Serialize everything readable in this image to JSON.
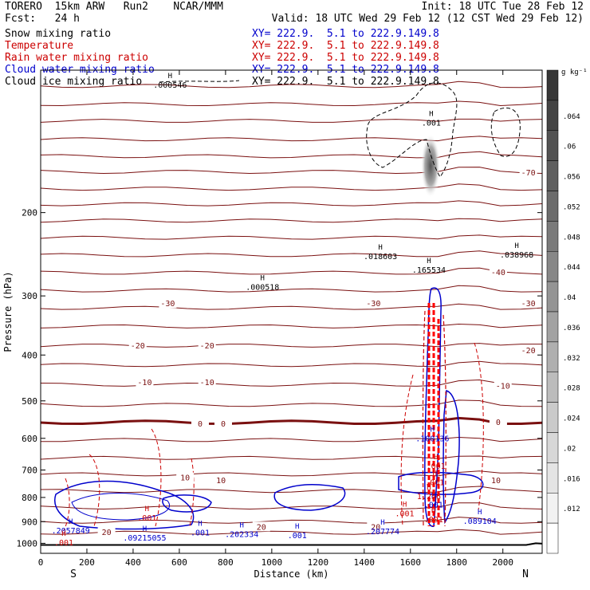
{
  "header": {
    "model": "TORERO  15km ARW   Run2    NCAR/MMM",
    "init": "Init: 18 UTC Tue 28 Feb 12",
    "fcst": "Fcst:   24 h",
    "valid": "Valid: 18 UTC Wed 29 Feb 12 (12 CST Wed 29 Feb 12)"
  },
  "fields": [
    {
      "name": "Snow mixing ratio",
      "xy": "XY= 222.9.  5.1 to 222.9.149.8",
      "color": "#000000"
    },
    {
      "name": "Temperature",
      "xy": "XY= 222.9.  5.1 to 222.9.149.8",
      "color": "#cc0000"
    },
    {
      "name": "Rain water mixing ratio",
      "xy": "XY= 222.9.  5.1 to 222.9.149.8",
      "color": "#cc0000"
    },
    {
      "name": "Cloud water mixing ratio",
      "xy": "XY= 222.9.  5.1 to 222.9.149.8",
      "color": "#0000cc"
    },
    {
      "name": "Cloud ice mixing ratio",
      "xy": "XY= 222.9.  5.1 to 222.9.149.8",
      "color": "#000000"
    }
  ],
  "chart_data": {
    "type": "cross-section contour",
    "xlabel": "Distance (km)",
    "ylabel": "Pressure (hPa)",
    "x_ticks": [
      "0",
      "200",
      "400",
      "600",
      "800",
      "1000",
      "1200",
      "1400",
      "1600",
      "1800",
      "2000"
    ],
    "xlim": [
      0,
      2170
    ],
    "y_ticks": [
      "200",
      "300",
      "400",
      "500",
      "600",
      "700",
      "800",
      "900",
      "1000"
    ],
    "ylim": [
      1050,
      100
    ],
    "endpoints": {
      "left": "S",
      "right": "N"
    },
    "colorbar": {
      "unit": "g kg⁻¹",
      "labels": [
        ".064",
        ".06",
        ".056",
        ".052",
        ".048",
        ".044",
        ".04",
        ".036",
        ".032",
        ".028",
        ".024",
        ".02",
        ".016",
        ".012"
      ]
    },
    "temperature_contour_labels": [
      {
        "text": "-70",
        "x": 2110,
        "p": 165
      },
      {
        "text": "-40",
        "x": 1980,
        "p": 268
      },
      {
        "text": "-30",
        "x": 550,
        "p": 312
      },
      {
        "text": "-30",
        "x": 1440,
        "p": 312
      },
      {
        "text": "-30",
        "x": 2110,
        "p": 312
      },
      {
        "text": "-20",
        "x": 420,
        "p": 383
      },
      {
        "text": "-20",
        "x": 720,
        "p": 383
      },
      {
        "text": "-20",
        "x": 2110,
        "p": 392
      },
      {
        "text": "-10",
        "x": 450,
        "p": 458
      },
      {
        "text": "-10",
        "x": 720,
        "p": 458
      },
      {
        "text": "-10",
        "x": 2000,
        "p": 466
      },
      {
        "text": "0",
        "x": 690,
        "p": 560
      },
      {
        "text": "0",
        "x": 790,
        "p": 560
      },
      {
        "text": "0",
        "x": 1980,
        "p": 556
      },
      {
        "text": "10",
        "x": 625,
        "p": 728
      },
      {
        "text": "10",
        "x": 780,
        "p": 737
      },
      {
        "text": "10",
        "x": 1970,
        "p": 737
      },
      {
        "text": "20",
        "x": 285,
        "p": 950
      },
      {
        "text": "20",
        "x": 955,
        "p": 925
      },
      {
        "text": "20",
        "x": 1450,
        "p": 925
      }
    ],
    "max_labels": [
      {
        "text": ".000546",
        "x": 560,
        "p": 108,
        "color": "#000000"
      },
      {
        "text": ".000518",
        "x": 960,
        "p": 289,
        "color": "#000000"
      },
      {
        "text": ".018603",
        "x": 1470,
        "p": 249,
        "color": "#000000"
      },
      {
        "text": ".165534",
        "x": 1680,
        "p": 266,
        "color": "#000000"
      },
      {
        "text": ".038968",
        "x": 2060,
        "p": 247,
        "color": "#000000"
      },
      {
        "text": ".001",
        "x": 1690,
        "p": 130,
        "color": "#000000"
      },
      {
        "text": ".100136",
        "x": 1695,
        "p": 604,
        "color": "#0000cc"
      },
      {
        "text": ".001",
        "x": 1700,
        "p": 833,
        "color": "#0000cc"
      },
      {
        "text": ".2057849",
        "x": 130,
        "p": 945,
        "color": "#0000cc"
      },
      {
        "text": ".09215055",
        "x": 450,
        "p": 979,
        "color": "#0000cc"
      },
      {
        "text": ".001",
        "x": 690,
        "p": 955,
        "color": "#0000cc"
      },
      {
        "text": ".202334",
        "x": 870,
        "p": 962,
        "color": "#0000cc"
      },
      {
        "text": ".001",
        "x": 1110,
        "p": 968,
        "color": "#0000cc"
      },
      {
        "text": ".207774",
        "x": 1480,
        "p": 950,
        "color": "#0000cc"
      },
      {
        "text": ".089104",
        "x": 1900,
        "p": 902,
        "color": "#0000cc"
      },
      {
        "text": ".001",
        "x": 1710,
        "p": 691,
        "color": "#cc0000"
      },
      {
        "text": ".001",
        "x": 1705,
        "p": 747,
        "color": "#cc0000"
      },
      {
        "text": "1.256",
        "x": 1680,
        "p": 800,
        "color": "#cc0000"
      },
      {
        "text": ".001",
        "x": 1575,
        "p": 870,
        "color": "#cc0000"
      },
      {
        "text": ".801",
        "x": 1700,
        "p": 895,
        "color": "#cc0000"
      },
      {
        "text": ".001",
        "x": 460,
        "p": 889,
        "color": "#cc0000"
      },
      {
        "text": ".001",
        "x": 100,
        "p": 1003,
        "color": "#cc0000"
      }
    ]
  }
}
